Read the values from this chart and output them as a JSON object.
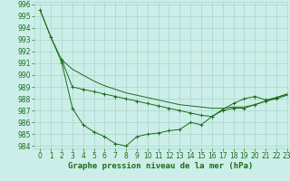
{
  "series": [
    {
      "name": "line1_marker",
      "x": [
        0,
        1,
        2,
        3,
        4,
        5,
        6,
        7,
        8,
        9,
        10,
        11,
        12,
        13,
        14,
        15,
        16,
        17,
        18,
        19,
        20,
        21,
        22,
        23
      ],
      "y": [
        995.5,
        993.2,
        991.1,
        987.2,
        985.8,
        985.2,
        984.8,
        984.2,
        984.0,
        984.8,
        985.0,
        985.1,
        985.3,
        985.4,
        986.0,
        985.8,
        986.5,
        987.0,
        987.2,
        987.2,
        987.5,
        987.8,
        988.0,
        988.3
      ],
      "marker": "+"
    },
    {
      "name": "line2_plain",
      "x": [
        0,
        1,
        2,
        3,
        4,
        5,
        6,
        7,
        8,
        9,
        10,
        11,
        12,
        13,
        14,
        15,
        16,
        17,
        18,
        19,
        20,
        21,
        22,
        23
      ],
      "y": [
        995.5,
        993.2,
        991.3,
        990.5,
        990.0,
        989.5,
        989.1,
        988.8,
        988.5,
        988.3,
        988.1,
        987.9,
        987.7,
        987.5,
        987.4,
        987.3,
        987.2,
        987.2,
        987.3,
        987.3,
        987.5,
        987.8,
        988.1,
        988.4
      ],
      "marker": null
    },
    {
      "name": "line3_marker",
      "x": [
        2,
        3,
        4,
        5,
        6,
        7,
        8,
        9,
        10,
        11,
        12,
        13,
        14,
        15,
        16,
        17,
        18,
        19,
        20,
        21,
        22,
        23
      ],
      "y": [
        991.3,
        989.0,
        988.8,
        988.6,
        988.4,
        988.2,
        988.0,
        987.8,
        987.6,
        987.4,
        987.2,
        987.0,
        986.8,
        986.6,
        986.5,
        987.1,
        987.6,
        988.0,
        988.2,
        987.9,
        988.1,
        988.4
      ],
      "marker": "+"
    }
  ],
  "xlim": [
    -0.5,
    23
  ],
  "ylim": [
    983.8,
    996.2
  ],
  "yticks": [
    984,
    985,
    986,
    987,
    988,
    989,
    990,
    991,
    992,
    993,
    994,
    995,
    996
  ],
  "xticks": [
    0,
    1,
    2,
    3,
    4,
    5,
    6,
    7,
    8,
    9,
    10,
    11,
    12,
    13,
    14,
    15,
    16,
    17,
    18,
    19,
    20,
    21,
    22,
    23
  ],
  "xlabel": "Graphe pression niveau de la mer (hPa)",
  "line_color": "#1a6e1a",
  "bg_color": "#cceee8",
  "grid_color": "#aad4ce",
  "tick_fontsize": 5.5,
  "label_fontsize": 6.5
}
